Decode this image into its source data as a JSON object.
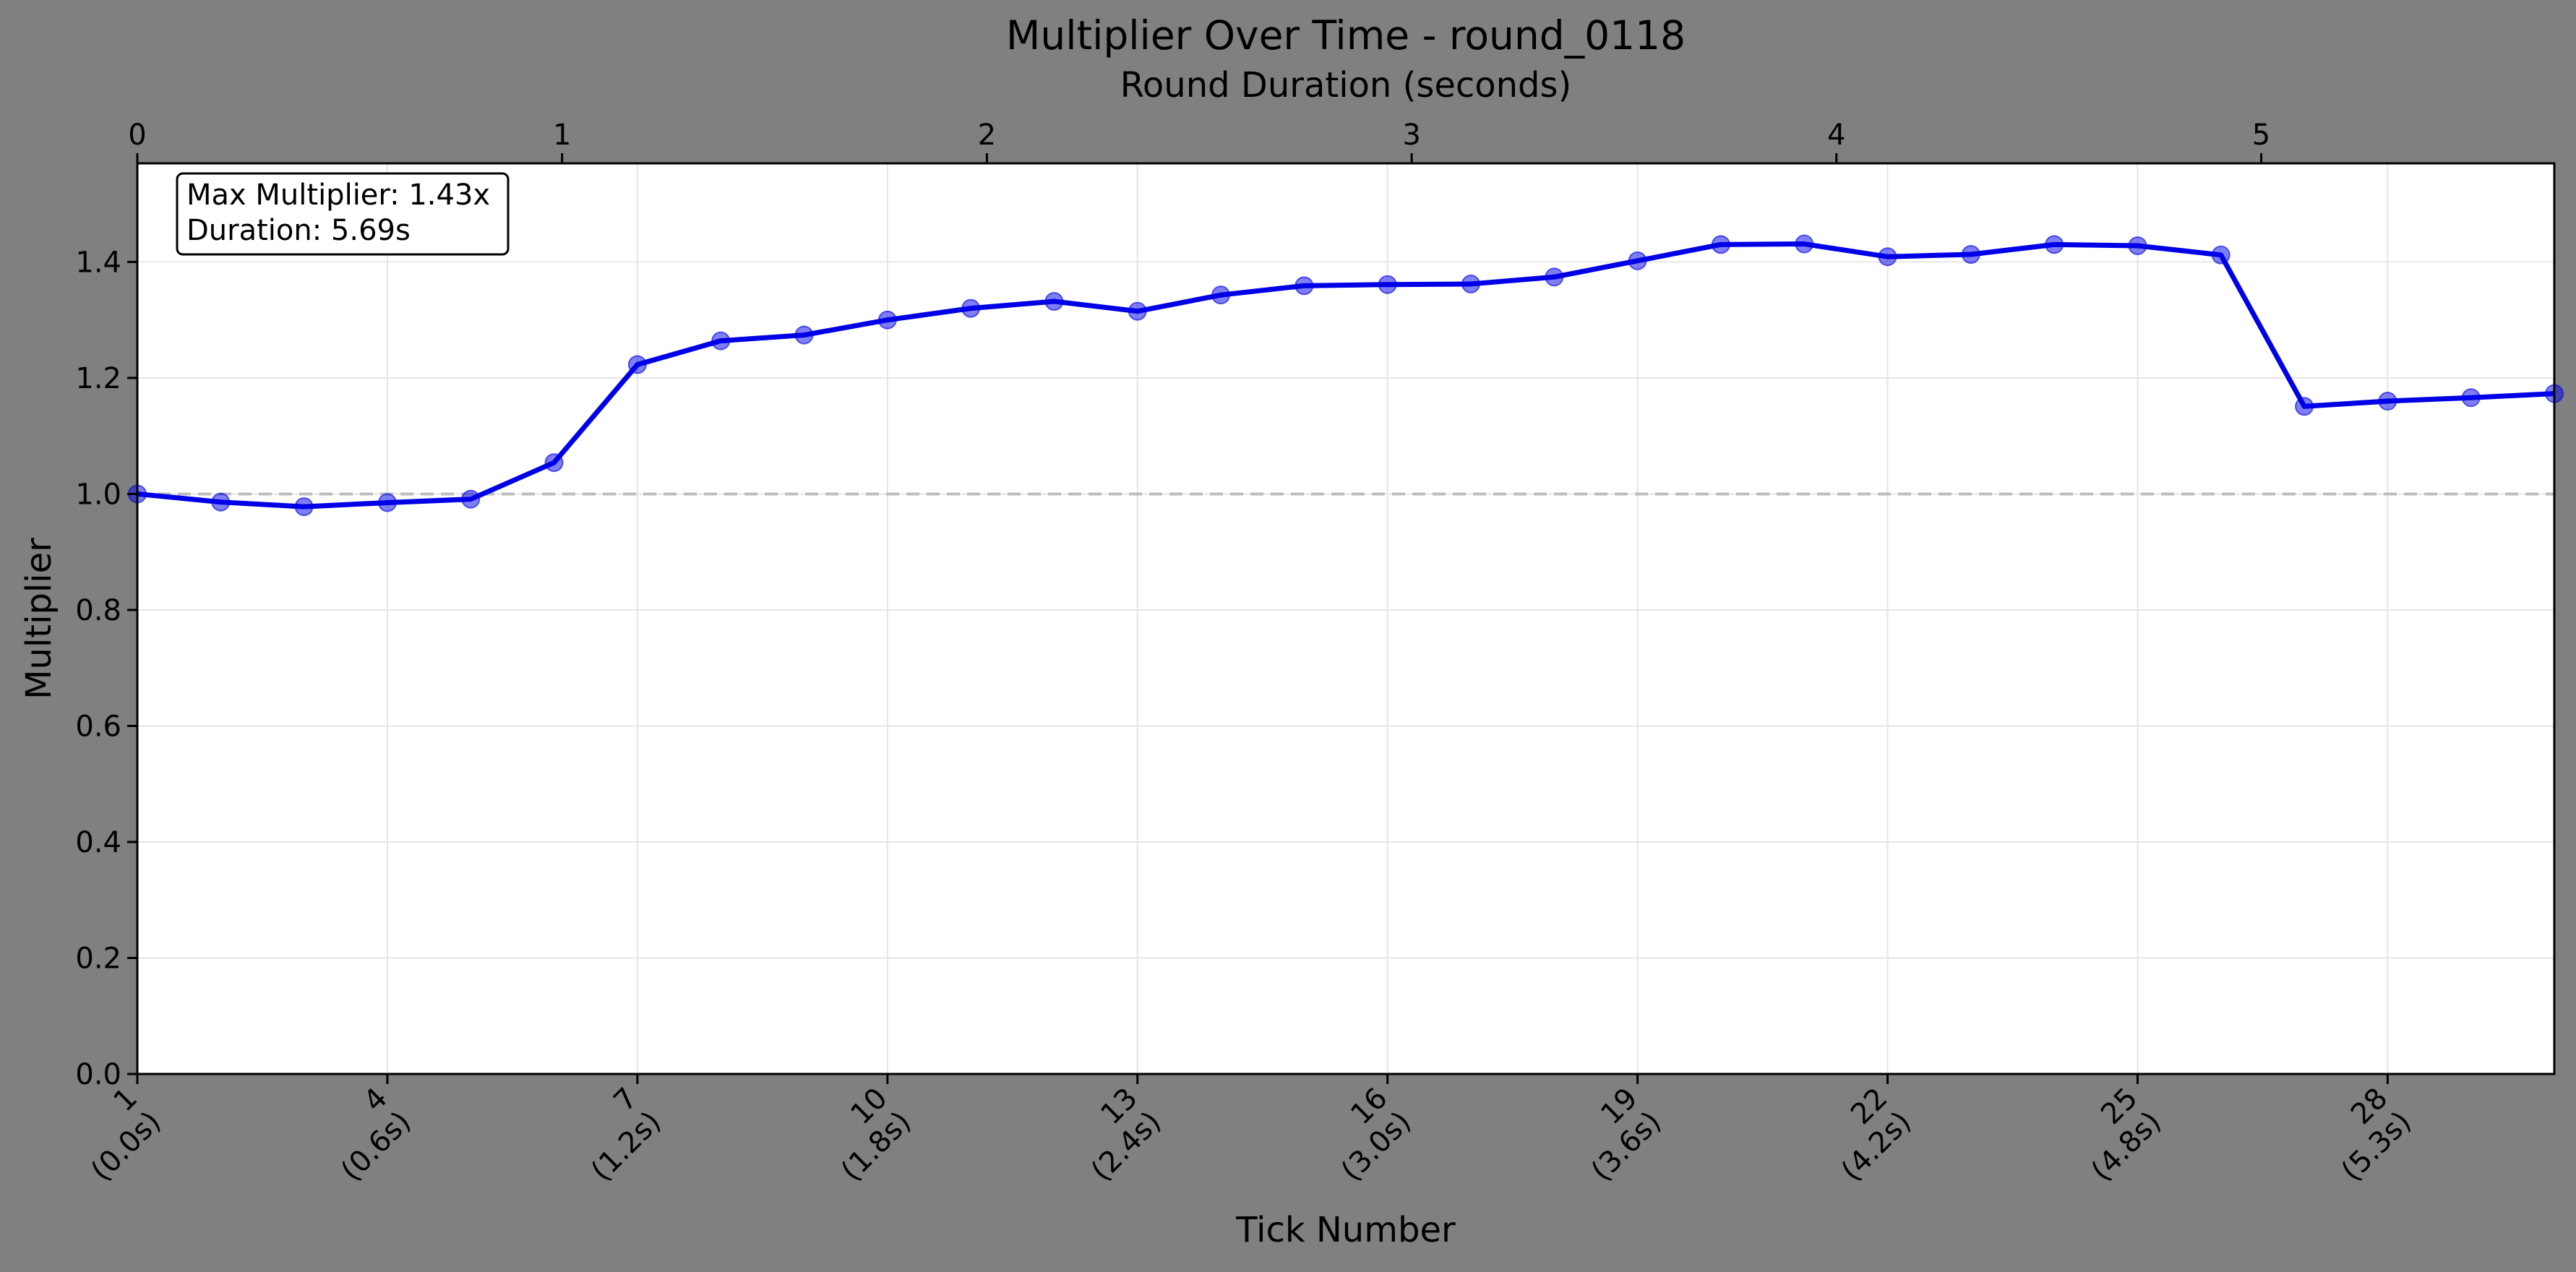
{
  "chart_data": {
    "type": "line",
    "title": "Multiplier Over Time - round_0118",
    "xlabel": "Tick Number",
    "ylabel": "Multiplier",
    "secondary_xlabel": "Round Duration (seconds)",
    "x": [
      1,
      2,
      3,
      4,
      5,
      6,
      7,
      8,
      9,
      10,
      11,
      12,
      13,
      14,
      15,
      16,
      17,
      18,
      19,
      20,
      21,
      22,
      23,
      24,
      25,
      26,
      27,
      28,
      29,
      30
    ],
    "series": [
      {
        "values": [
          1.0,
          0.986,
          0.978,
          0.985,
          0.991,
          1.054,
          1.223,
          1.264,
          1.274,
          1.3,
          1.32,
          1.332,
          1.315,
          1.343,
          1.359,
          1.361,
          1.362,
          1.374,
          1.402,
          1.43,
          1.431,
          1.409,
          1.413,
          1.43,
          1.428,
          1.412,
          1.151,
          1.16,
          1.166,
          1.173
        ],
        "color": "#0000e6"
      }
    ],
    "xlim": [
      1,
      30
    ],
    "ylim": [
      0,
      1.57
    ],
    "x_ticks": [
      1,
      4,
      7,
      10,
      13,
      16,
      19,
      22,
      25,
      28
    ],
    "x_tick_labels": [
      [
        "1",
        "(0.0s)"
      ],
      [
        "4",
        "(0.6s)"
      ],
      [
        "7",
        "(1.2s)"
      ],
      [
        "10",
        "(1.8s)"
      ],
      [
        "13",
        "(2.4s)"
      ],
      [
        "16",
        "(3.0s)"
      ],
      [
        "19",
        "(3.6s)"
      ],
      [
        "22",
        "(4.2s)"
      ],
      [
        "25",
        "(4.8s)"
      ],
      [
        "28",
        "(5.3s)"
      ]
    ],
    "y_ticks": [
      0.0,
      0.2,
      0.4,
      0.6,
      0.8,
      1.0,
      1.2,
      1.4
    ],
    "y_tick_labels": [
      "0.0",
      "0.2",
      "0.4",
      "0.6",
      "0.8",
      "1.0",
      "1.2",
      "1.4"
    ],
    "secondary_x_ticks": [
      0,
      1,
      2,
      3,
      4,
      5
    ],
    "secondary_x_tick_labels": [
      "0",
      "1",
      "2",
      "3",
      "4",
      "5"
    ],
    "secondary_xlim": [
      0,
      5.69
    ],
    "reference_line": {
      "y": 1.0,
      "style": "dashed",
      "color": "#bdbdbd"
    },
    "annotation": {
      "lines": [
        "Max Multiplier: 1.43x",
        "Duration: 5.69s"
      ],
      "position": "top-left"
    },
    "grid": true,
    "background_color": "#808080",
    "plot_background": "#ffffff"
  }
}
